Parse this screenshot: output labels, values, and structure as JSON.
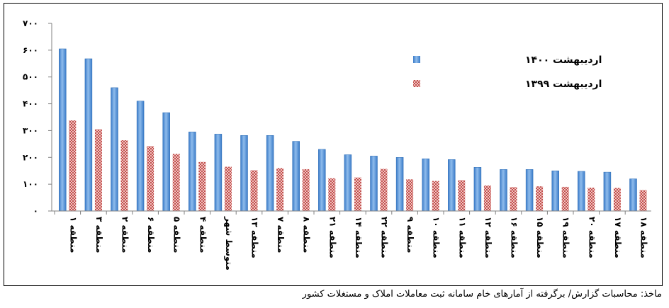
{
  "chart_data": {
    "type": "bar",
    "title": "",
    "xlabel": "",
    "ylabel": "",
    "ylim": [
      0,
      700
    ],
    "yticks": [
      "۰",
      "۱۰۰",
      "۲۰۰",
      "۳۰۰",
      "۴۰۰",
      "۵۰۰",
      "۶۰۰",
      "۷۰۰"
    ],
    "grid": false,
    "legend_position": "top-right",
    "categories": [
      "منطقه ۱",
      "منطقه ۳",
      "منطقه ۲",
      "منطقه ۶",
      "منطقه ۵",
      "منطقه ۴",
      "متوسط شهر",
      "منطقه ۱۳",
      "منطقه ۷",
      "منطقه ۸",
      "منطقه ۲۱",
      "منطقه ۱۴",
      "منطقه ۲۲",
      "منطقه ۹",
      "منطقه ۱۰",
      "منطقه ۱۱",
      "منطقه ۱۲",
      "منطقه ۱۶",
      "منطقه ۱۵",
      "منطقه ۱۹",
      "منطقه ۲۰",
      "منطقه ۱۷",
      "منطقه ۱۸"
    ],
    "series": [
      {
        "name": "اردیبهشت ۱۴۰۰",
        "color": "#5b9bd5",
        "values": [
          605,
          568,
          460,
          410,
          367,
          295,
          287,
          282,
          282,
          260,
          230,
          210,
          205,
          200,
          195,
          192,
          163,
          155,
          155,
          150,
          148,
          145,
          120
        ]
      },
      {
        "name": "اردیبهشت ۱۳۹۹",
        "color": "#c0504d",
        "values": [
          338,
          305,
          264,
          242,
          213,
          183,
          165,
          152,
          160,
          156,
          122,
          125,
          157,
          118,
          112,
          115,
          95,
          89,
          92,
          90,
          87,
          86,
          78
        ]
      }
    ]
  },
  "source": "ماخذ: محاسبات گزارش/ برگرفته از آمارهای خام سامانه ثبت معاملات املاک و مستغلات کشور"
}
